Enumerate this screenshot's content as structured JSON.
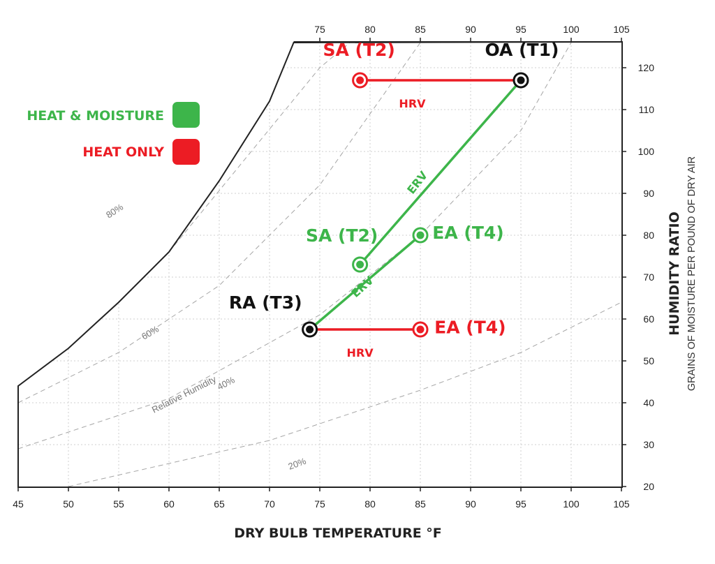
{
  "chart_data": {
    "type": "scatter",
    "title": "",
    "xlabel": "DRY BULB TEMPERATURE °F",
    "ylabel": "HUMIDITY RATIO",
    "ylabel_sub": "GRAINS OF MOISTURE PER POUND OF DRY AIR",
    "xlim": [
      45,
      105
    ],
    "ylim": [
      20,
      126
    ],
    "x_ticks_bottom": [
      "45",
      "50",
      "55",
      "60",
      "65",
      "70",
      "75",
      "80",
      "85",
      "90",
      "95",
      "100",
      "105"
    ],
    "x_ticks_top": [
      "75",
      "80",
      "85",
      "90",
      "95",
      "100",
      "105"
    ],
    "y_ticks": [
      "20",
      "30",
      "40",
      "50",
      "60",
      "70",
      "80",
      "90",
      "100",
      "110",
      "120"
    ],
    "grid": true,
    "legend_position": "top-left",
    "legend": [
      {
        "label": "HEAT & MOISTURE",
        "color": "#3db54a"
      },
      {
        "label": "HEAT ONLY",
        "color": "#ec1c24"
      }
    ],
    "points": [
      {
        "id": "oa",
        "label": "OA (T1)",
        "x": 95,
        "y": 117,
        "color": "#111111"
      },
      {
        "id": "ra",
        "label": "RA (T3)",
        "x": 74,
        "y": 57.5,
        "color": "#111111"
      },
      {
        "id": "sa_hrv",
        "label": "SA (T2)",
        "x": 79,
        "y": 117,
        "color": "#ec1c24"
      },
      {
        "id": "ea_hrv",
        "label": "EA (T4)",
        "x": 85,
        "y": 57.5,
        "color": "#ec1c24"
      },
      {
        "id": "sa_erv",
        "label": "SA (T2)",
        "x": 79,
        "y": 73,
        "color": "#3db54a"
      },
      {
        "id": "ea_erv",
        "label": "EA (T4)",
        "x": 85,
        "y": 80,
        "color": "#3db54a"
      }
    ],
    "series": [
      {
        "name": "HRV",
        "color": "#ec1c24",
        "from": "oa",
        "to": "sa_hrv"
      },
      {
        "name": "HRV",
        "color": "#ec1c24",
        "from": "ra",
        "to": "ea_hrv"
      },
      {
        "name": "ERV",
        "color": "#3db54a",
        "from": "oa",
        "to": "sa_erv"
      },
      {
        "name": "ERV",
        "color": "#3db54a",
        "from": "ra",
        "to": "ea_erv"
      }
    ],
    "relative_humidity_curves": [
      {
        "label": "80%"
      },
      {
        "label": "60%"
      },
      {
        "label": "40%"
      },
      {
        "label": "20%"
      }
    ],
    "relative_humidity_caption": "Relative Humidity"
  }
}
